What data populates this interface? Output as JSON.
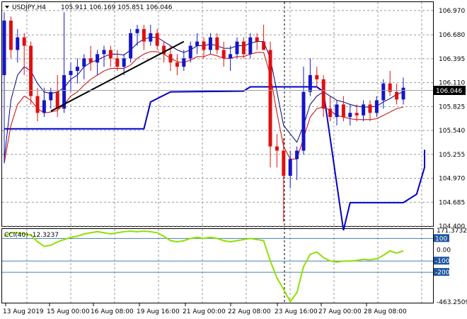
{
  "header": {
    "symbol_timeframe": "USDJPY,H4",
    "ohlc": "105.911 106.169 105.851 106.046"
  },
  "price_axis": {
    "ticks": [
      "106.970",
      "106.680",
      "106.395",
      "106.110",
      "105.825",
      "105.540",
      "105.255",
      "104.970",
      "104.685",
      "104.400"
    ],
    "current_price": "106.046",
    "accent": "#000000"
  },
  "cci_panel": {
    "label": "CCI(40) -12.3237",
    "ticks": [
      "171.3732",
      "100",
      "0.00",
      "-100",
      "-200",
      "-463.2509"
    ],
    "level_line_color": "#4a7fb5",
    "line_color": "#8fe000"
  },
  "time_axis": {
    "labels": [
      "13 Aug 2019",
      "15 Aug 00:00",
      "16 Aug 08:00",
      "19 Aug 16:00",
      "21 Aug 00:00",
      "22 Aug 08:00",
      "23 Aug 16:00",
      "27 Aug 00:00",
      "28 Aug 08:00"
    ]
  },
  "colors": {
    "bull_candle": "#1515c8",
    "bear_candle": "#e01010",
    "ma_upper": "#000080",
    "ma_lower": "#cc0000",
    "stop_line": "#0000c8",
    "trend_line": "#000000",
    "grid": "#9a9a9a"
  },
  "chart_data": {
    "type": "candlestick",
    "title": "USDJPY,H4",
    "ylim": [
      104.4,
      107.07
    ],
    "candles": [
      {
        "o": 106.2,
        "h": 106.95,
        "l": 105.15,
        "c": 106.85
      },
      {
        "o": 106.85,
        "h": 106.9,
        "l": 106.4,
        "c": 106.5
      },
      {
        "o": 106.5,
        "h": 106.75,
        "l": 106.35,
        "c": 106.65
      },
      {
        "o": 106.65,
        "h": 106.7,
        "l": 106.2,
        "c": 106.55
      },
      {
        "o": 106.55,
        "h": 106.6,
        "l": 105.85,
        "c": 105.95
      },
      {
        "o": 105.95,
        "h": 106.05,
        "l": 105.65,
        "c": 105.75
      },
      {
        "o": 105.75,
        "h": 106.05,
        "l": 105.7,
        "c": 105.9
      },
      {
        "o": 105.9,
        "h": 106.05,
        "l": 105.8,
        "c": 106.0
      },
      {
        "o": 106.0,
        "h": 106.2,
        "l": 105.7,
        "c": 105.8
      },
      {
        "o": 105.8,
        "h": 106.95,
        "l": 105.75,
        "c": 106.2
      },
      {
        "o": 106.2,
        "h": 106.35,
        "l": 106.0,
        "c": 106.25
      },
      {
        "o": 106.25,
        "h": 106.4,
        "l": 106.1,
        "c": 106.3
      },
      {
        "o": 106.3,
        "h": 106.45,
        "l": 106.15,
        "c": 106.4
      },
      {
        "o": 106.4,
        "h": 106.55,
        "l": 106.25,
        "c": 106.35
      },
      {
        "o": 106.35,
        "h": 106.5,
        "l": 106.2,
        "c": 106.45
      },
      {
        "o": 106.45,
        "h": 106.55,
        "l": 106.3,
        "c": 106.5
      },
      {
        "o": 106.5,
        "h": 106.55,
        "l": 106.3,
        "c": 106.4
      },
      {
        "o": 106.4,
        "h": 106.5,
        "l": 106.25,
        "c": 106.3
      },
      {
        "o": 106.3,
        "h": 106.45,
        "l": 106.2,
        "c": 106.4
      },
      {
        "o": 106.4,
        "h": 106.75,
        "l": 106.35,
        "c": 106.7
      },
      {
        "o": 106.7,
        "h": 106.8,
        "l": 106.55,
        "c": 106.75
      },
      {
        "o": 106.75,
        "h": 106.8,
        "l": 106.5,
        "c": 106.6
      },
      {
        "o": 106.6,
        "h": 106.8,
        "l": 106.55,
        "c": 106.7
      },
      {
        "o": 106.7,
        "h": 106.75,
        "l": 106.5,
        "c": 106.55
      },
      {
        "o": 106.55,
        "h": 106.6,
        "l": 106.35,
        "c": 106.45
      },
      {
        "o": 106.45,
        "h": 106.55,
        "l": 106.25,
        "c": 106.35
      },
      {
        "o": 106.35,
        "h": 106.45,
        "l": 106.2,
        "c": 106.3
      },
      {
        "o": 106.3,
        "h": 106.5,
        "l": 106.25,
        "c": 106.4
      },
      {
        "o": 106.4,
        "h": 106.6,
        "l": 106.35,
        "c": 106.55
      },
      {
        "o": 106.55,
        "h": 106.7,
        "l": 106.45,
        "c": 106.6
      },
      {
        "o": 106.6,
        "h": 106.65,
        "l": 106.4,
        "c": 106.5
      },
      {
        "o": 106.5,
        "h": 106.7,
        "l": 106.45,
        "c": 106.65
      },
      {
        "o": 106.65,
        "h": 106.7,
        "l": 106.45,
        "c": 106.5
      },
      {
        "o": 106.5,
        "h": 106.6,
        "l": 106.3,
        "c": 106.4
      },
      {
        "o": 106.4,
        "h": 106.55,
        "l": 106.25,
        "c": 106.45
      },
      {
        "o": 106.45,
        "h": 106.65,
        "l": 106.4,
        "c": 106.6
      },
      {
        "o": 106.6,
        "h": 106.65,
        "l": 106.4,
        "c": 106.45
      },
      {
        "o": 106.45,
        "h": 106.7,
        "l": 106.4,
        "c": 106.65
      },
      {
        "o": 106.65,
        "h": 106.7,
        "l": 106.5,
        "c": 106.6
      },
      {
        "o": 106.6,
        "h": 106.8,
        "l": 106.5,
        "c": 106.5
      },
      {
        "o": 106.5,
        "h": 106.6,
        "l": 105.1,
        "c": 105.35
      },
      {
        "o": 105.35,
        "h": 105.5,
        "l": 105.1,
        "c": 105.3
      },
      {
        "o": 105.3,
        "h": 105.45,
        "l": 104.45,
        "c": 105.0
      },
      {
        "o": 105.0,
        "h": 105.3,
        "l": 104.85,
        "c": 105.2
      },
      {
        "o": 105.2,
        "h": 105.35,
        "l": 104.95,
        "c": 105.3
      },
      {
        "o": 105.3,
        "h": 106.3,
        "l": 105.25,
        "c": 106.0
      },
      {
        "o": 106.0,
        "h": 106.4,
        "l": 105.95,
        "c": 106.2
      },
      {
        "o": 106.2,
        "h": 106.3,
        "l": 106.05,
        "c": 106.15
      },
      {
        "o": 106.15,
        "h": 106.2,
        "l": 105.7,
        "c": 105.8
      },
      {
        "o": 105.8,
        "h": 105.95,
        "l": 105.65,
        "c": 105.7
      },
      {
        "o": 105.7,
        "h": 105.9,
        "l": 105.6,
        "c": 105.85
      },
      {
        "o": 105.85,
        "h": 105.95,
        "l": 105.65,
        "c": 105.7
      },
      {
        "o": 105.7,
        "h": 105.85,
        "l": 105.6,
        "c": 105.75
      },
      {
        "o": 105.75,
        "h": 105.85,
        "l": 105.65,
        "c": 105.72
      },
      {
        "o": 105.72,
        "h": 105.9,
        "l": 105.65,
        "c": 105.85
      },
      {
        "o": 105.85,
        "h": 105.9,
        "l": 105.65,
        "c": 105.75
      },
      {
        "o": 105.75,
        "h": 105.95,
        "l": 105.7,
        "c": 105.9
      },
      {
        "o": 105.9,
        "h": 106.15,
        "l": 105.8,
        "c": 106.1
      },
      {
        "o": 106.1,
        "h": 106.25,
        "l": 105.95,
        "c": 106.0
      },
      {
        "o": 106.0,
        "h": 106.1,
        "l": 105.85,
        "c": 105.91
      },
      {
        "o": 105.91,
        "h": 106.17,
        "l": 105.85,
        "c": 106.05
      }
    ],
    "ma_upper": [
      105.2,
      105.9,
      106.2,
      106.3,
      106.25,
      106.1,
      106.0,
      105.98,
      106.0,
      106.05,
      106.15,
      106.2,
      106.3,
      106.35,
      106.38,
      106.42,
      106.45,
      106.45,
      106.44,
      106.5,
      106.58,
      106.63,
      106.65,
      106.65,
      106.6,
      106.55,
      106.5,
      106.47,
      106.5,
      106.55,
      106.55,
      106.57,
      106.55,
      106.52,
      106.52,
      106.55,
      106.55,
      106.58,
      106.6,
      106.6,
      106.4,
      106.0,
      105.6,
      105.5,
      105.4,
      105.6,
      105.85,
      105.95,
      106.0,
      105.95,
      105.9,
      105.88,
      105.85,
      105.83,
      105.82,
      105.82,
      105.83,
      105.88,
      105.92,
      105.97,
      106.0
    ],
    "ma_lower": [
      105.15,
      105.6,
      105.85,
      105.95,
      105.9,
      105.8,
      105.75,
      105.76,
      105.78,
      105.85,
      105.95,
      106.0,
      106.08,
      106.15,
      106.2,
      106.25,
      106.28,
      106.28,
      106.28,
      106.32,
      106.4,
      106.45,
      106.48,
      106.48,
      106.45,
      106.4,
      106.36,
      106.35,
      106.38,
      106.42,
      106.42,
      106.45,
      106.43,
      106.4,
      106.4,
      106.42,
      106.42,
      106.45,
      106.47,
      106.47,
      106.2,
      105.75,
      105.35,
      105.2,
      105.2,
      105.45,
      105.7,
      105.8,
      105.82,
      105.78,
      105.72,
      105.7,
      105.68,
      105.67,
      105.67,
      105.67,
      105.68,
      105.72,
      105.76,
      105.8,
      105.82
    ],
    "stop_line": [
      [
        0,
        105.56
      ],
      [
        21,
        105.56
      ],
      [
        22,
        105.88
      ],
      [
        25,
        106.0
      ],
      [
        36,
        106.01
      ],
      [
        37,
        106.06
      ],
      [
        47,
        106.06
      ],
      [
        48,
        106.0
      ],
      [
        51,
        104.35
      ],
      [
        52,
        104.68
      ],
      [
        60,
        104.68
      ],
      [
        62,
        104.78
      ],
      [
        66,
        105.1
      ],
      [
        70,
        105.31
      ],
      [
        73,
        105.31
      ]
    ],
    "trend_line": [
      [
        7,
        105.77
      ],
      [
        27,
        106.6
      ]
    ],
    "cci": [
      120,
      150,
      150,
      140,
      130,
      70,
      30,
      40,
      70,
      90,
      110,
      120,
      140,
      150,
      160,
      150,
      140,
      150,
      160,
      165,
      160,
      165,
      160,
      150,
      120,
      80,
      70,
      80,
      100,
      110,
      100,
      110,
      100,
      80,
      70,
      80,
      90,
      100,
      90,
      80,
      -100,
      -250,
      -350,
      -460,
      -380,
      -150,
      -40,
      -20,
      -70,
      -100,
      -110,
      -100,
      -100,
      -95,
      -85,
      -90,
      -80,
      -50,
      -10,
      -30,
      -10
    ]
  }
}
